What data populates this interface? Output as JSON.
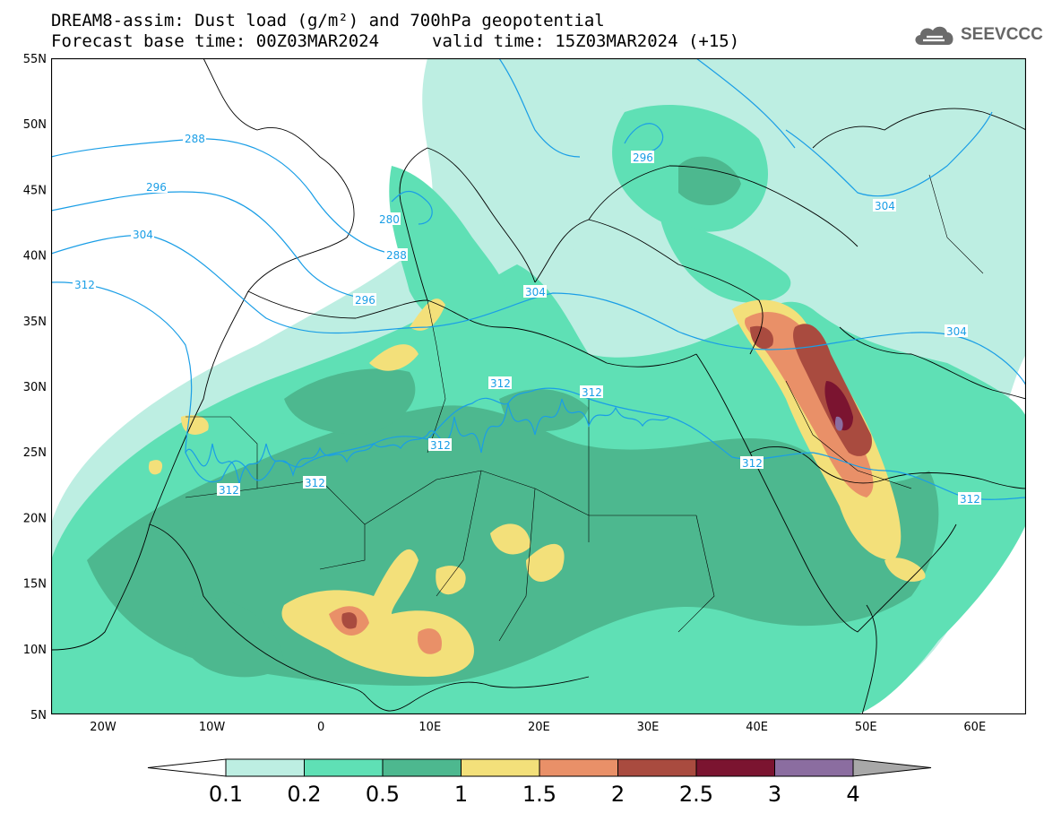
{
  "header": {
    "title": "DREAM8-assim: Dust load (g/m²) and 700hPa geopotential",
    "base_time": "Forecast base time: 00Z03MAR2024",
    "valid_time": "valid time: 15Z03MAR2024 (+15)"
  },
  "logo": {
    "text": "SEEVCCC",
    "icon": "cloud-icon"
  },
  "axes": {
    "lat_ticks": [
      "55N",
      "50N",
      "45N",
      "40N",
      "35N",
      "30N",
      "25N",
      "20N",
      "15N",
      "10N",
      "5N"
    ],
    "lon_ticks": [
      "20W",
      "10W",
      "0",
      "10E",
      "20E",
      "30E",
      "40E",
      "50E",
      "60E"
    ]
  },
  "colorbar": {
    "labels": [
      "0.1",
      "0.2",
      "0.5",
      "1",
      "1.5",
      "2",
      "2.5",
      "3",
      "4"
    ],
    "colors": [
      "#ffffff",
      "#bdeee2",
      "#5fe0b5",
      "#4db88f",
      "#f3e07a",
      "#e99068",
      "#a94b3f",
      "#7b1430",
      "#8b6da0",
      "#a8a8a8"
    ]
  },
  "contour_labels": {
    "c280": "280",
    "c288": "288",
    "c296": "296",
    "c304": "304",
    "c312": "312"
  },
  "colors": {
    "contour": "#1a9ee6",
    "coast": "#000000"
  }
}
